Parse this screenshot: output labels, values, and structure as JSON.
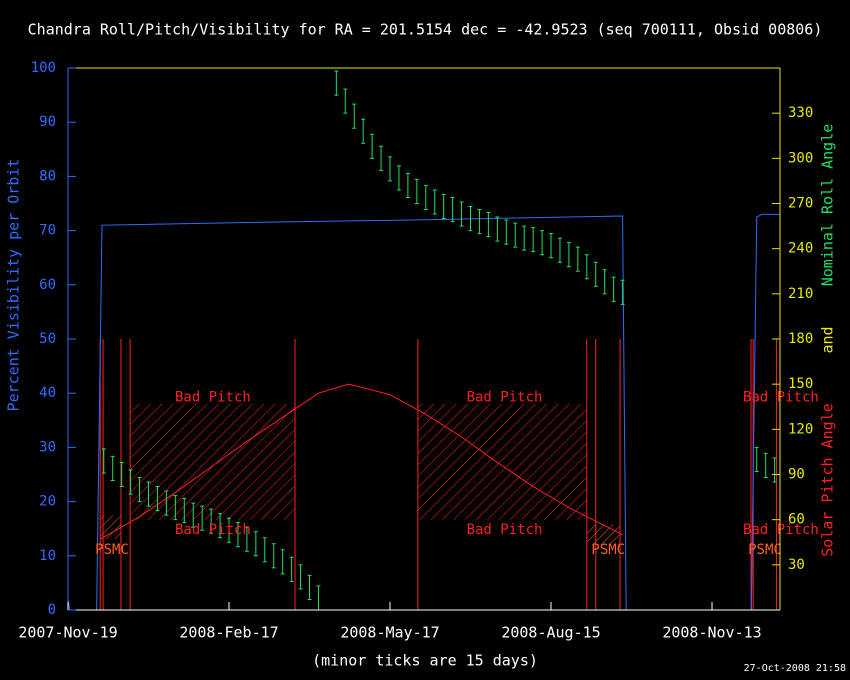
{
  "chart_data": {
    "type": "multi",
    "title": "Chandra Roll/Pitch/Visibility for RA = 201.5154 dec = -42.9523 (seq 700111, Obsid 00806)",
    "xlabel": "(minor ticks are 15 days)",
    "ylabel": "Percent Visibility per Orbit",
    "y2label_parts": [
      {
        "text": "Solar Pitch Angle",
        "color": "#ff2020"
      },
      {
        "text": "and",
        "color": "#e8e800"
      },
      {
        "text": "Nominal Roll Angle",
        "color": "#20e060"
      }
    ],
    "footer": "27-Oct-2008 21:58",
    "xlim": [
      0,
      398
    ],
    "xticks": [
      {
        "value": 0,
        "label": "2007-Nov-19"
      },
      {
        "value": 90,
        "label": "2008-Feb-17"
      },
      {
        "value": 180,
        "label": "2008-May-17"
      },
      {
        "value": 270,
        "label": "2008-Aug-15"
      },
      {
        "value": 360,
        "label": "2008-Nov-13"
      }
    ],
    "ylim": [
      0,
      100
    ],
    "yticks": [
      0,
      10,
      20,
      30,
      40,
      50,
      60,
      70,
      80,
      90,
      100
    ],
    "y2lim": [
      0,
      360
    ],
    "y2ticks": [
      30,
      60,
      90,
      120,
      150,
      180,
      210,
      240,
      270,
      300,
      330
    ],
    "series": [
      {
        "style": "line",
        "axis": "y",
        "color": "#2f6cff",
        "x": [
          0,
          1,
          16,
          19,
          100,
          200,
          310,
          312,
          382,
          385,
          388,
          398
        ],
        "values": [
          2,
          0,
          0,
          71,
          71.5,
          72,
          72.7,
          0,
          0,
          72.5,
          73,
          73
        ]
      },
      {
        "style": "line",
        "axis": "y2",
        "color": "#ff2020",
        "x": [
          18,
          40,
          60,
          80,
          100,
          120,
          140,
          157,
          180,
          200,
          220,
          240,
          260,
          280,
          300,
          310
        ],
        "values": [
          47,
          62,
          78,
          95,
          112,
          128,
          144,
          150,
          143,
          130,
          115,
          98,
          82,
          68,
          56,
          50
        ]
      },
      {
        "style": "errorbar",
        "axis": "y2",
        "color": "#20e060",
        "x": [
          20,
          25,
          30,
          35,
          40,
          45,
          50,
          55,
          60,
          65,
          70,
          75,
          80,
          85,
          90,
          95,
          100,
          105,
          110,
          115,
          120,
          125,
          130,
          135,
          140,
          150,
          155,
          160,
          165,
          170,
          175,
          180,
          185,
          190,
          195,
          200,
          205,
          210,
          215,
          220,
          225,
          230,
          235,
          240,
          245,
          250,
          255,
          260,
          265,
          270,
          275,
          280,
          285,
          290,
          295,
          300,
          305,
          310,
          385,
          390,
          395
        ],
        "values": [
          99,
          94,
          90,
          85,
          80,
          77,
          74,
          71,
          68,
          66,
          63,
          61,
          59,
          56,
          53,
          50,
          47,
          44,
          40,
          36,
          32,
          27,
          22,
          15,
          8,
          350,
          338,
          328,
          318,
          308,
          300,
          293,
          287,
          282,
          278,
          274,
          271,
          268,
          266,
          263,
          260,
          258,
          256,
          253,
          251,
          249,
          247,
          246,
          244,
          242,
          239,
          236,
          233,
          228,
          223,
          218,
          213,
          211,
          100,
          96,
          93
        ],
        "errors": [
          8,
          8,
          8,
          8,
          8,
          8,
          8,
          8,
          8,
          8,
          8,
          8,
          8,
          8,
          8,
          8,
          8,
          8,
          8,
          8,
          8,
          8,
          8,
          8,
          8,
          8,
          8,
          8,
          8,
          8,
          8,
          8,
          8,
          8,
          8,
          8,
          8,
          8,
          8,
          8,
          8,
          8,
          8,
          8,
          8,
          8,
          8,
          8,
          8,
          8,
          8,
          8,
          8,
          8,
          8,
          8,
          8,
          8,
          8,
          8,
          8
        ]
      }
    ],
    "vlines": {
      "color": "#ff2020",
      "ylim": [
        0,
        180
      ],
      "x": [
        18,
        19.6,
        29.6,
        34.7,
        126.9,
        195.6,
        290,
        295,
        308.6,
        381.8,
        383,
        396
      ]
    },
    "regions": [
      {
        "color": "#ff2020",
        "x": [
          34.7,
          126.9
        ],
        "y": [
          60,
          137
        ]
      },
      {
        "color": "#ff2020",
        "x": [
          195.6,
          290
        ],
        "y": [
          60,
          137
        ]
      },
      {
        "color": "#ff6020",
        "x": [
          18,
          29.6
        ],
        "y": [
          47,
          63
        ]
      },
      {
        "color": "#ff6020",
        "x": [
          290,
          308.6
        ],
        "y": [
          43,
          57
        ]
      }
    ],
    "annotations": [
      {
        "text": "Bad Pitch",
        "color": "#ff2020",
        "x": 81,
        "y": 141
      },
      {
        "text": "Bad Pitch",
        "color": "#ff2020",
        "x": 81,
        "y": 53
      },
      {
        "text": "Bad Pitch",
        "color": "#ff2020",
        "x": 244,
        "y": 141
      },
      {
        "text": "Bad Pitch",
        "color": "#ff2020",
        "x": 244,
        "y": 53
      },
      {
        "text": "Bad Pitch",
        "color": "#ff2020",
        "x": 398.5,
        "y": 141
      },
      {
        "text": "Bad Pitch",
        "color": "#ff2020",
        "x": 398.5,
        "y": 53
      },
      {
        "text": "PSMC",
        "color": "#ff6020",
        "x": 24.6,
        "y": 40
      },
      {
        "text": "PSMC",
        "color": "#ff6020",
        "x": 302,
        "y": 40
      },
      {
        "text": "PSMC",
        "color": "#ff6020",
        "x": 389.6,
        "y": 40
      }
    ]
  }
}
